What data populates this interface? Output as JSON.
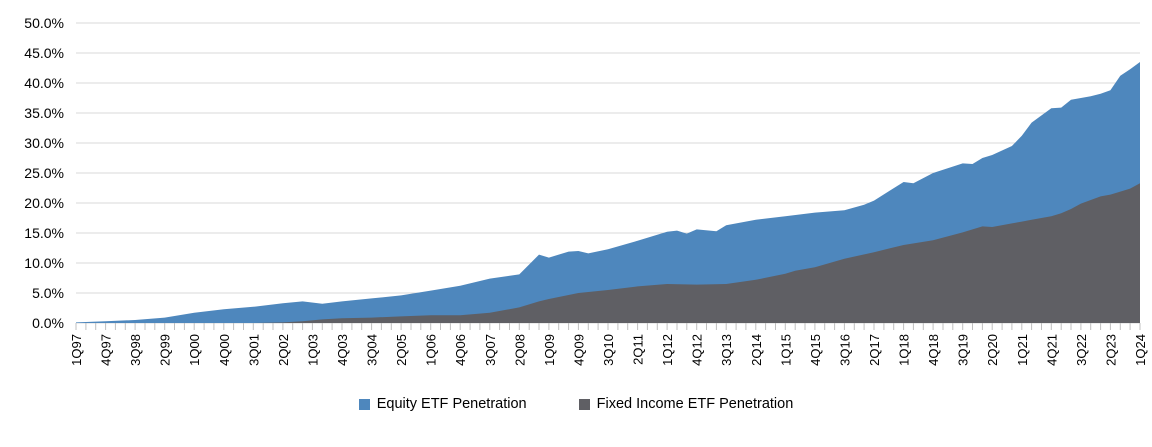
{
  "chart_data": {
    "type": "area",
    "title": "",
    "xlabel": "",
    "ylabel": "",
    "ylim": [
      0,
      50
    ],
    "grid": true,
    "legend_position": "bottom",
    "overlapping_areas": true,
    "colors": {
      "equity_blue": "#4E87BD",
      "fixed_income_gray": "#5F5F64",
      "gridline": "#D9D9D9",
      "tick": "#C0C0C0",
      "text": "#000000",
      "background": "#FFFFFF"
    },
    "y_axis": {
      "ticks": [
        [
          "0.0%",
          0
        ],
        [
          "5.0%",
          5
        ],
        [
          "10.0%",
          10
        ],
        [
          "15.0%",
          15
        ],
        [
          "20.0%",
          20
        ],
        [
          "25.0%",
          25
        ],
        [
          "30.0%",
          30
        ],
        [
          "35.0%",
          35
        ],
        [
          "40.0%",
          40
        ],
        [
          "45.0%",
          45
        ],
        [
          "50.0%",
          50
        ]
      ]
    },
    "x_axis": {
      "quarter_count": 109,
      "label_every_n_quarters": 3,
      "labels": [
        "1Q97",
        "4Q97",
        "3Q98",
        "2Q99",
        "1Q00",
        "4Q00",
        "3Q01",
        "2Q02",
        "1Q03",
        "4Q03",
        "3Q04",
        "2Q05",
        "1Q06",
        "4Q06",
        "3Q07",
        "2Q08",
        "1Q09",
        "4Q09",
        "3Q10",
        "2Q11",
        "1Q12",
        "4Q12",
        "3Q13",
        "2Q14",
        "1Q15",
        "4Q15",
        "3Q16",
        "2Q17",
        "1Q18",
        "4Q18",
        "3Q19",
        "2Q20",
        "1Q21",
        "4Q21",
        "3Q22",
        "2Q23",
        "1Q24"
      ]
    },
    "points_format": [
      "quarter",
      "quarter_index_from_1Q97",
      "value_percent"
    ],
    "series": [
      {
        "name": "Equity ETF Penetration",
        "color": "#4E87BD",
        "points": [
          [
            "1Q97",
            0,
            0.1
          ],
          [
            "4Q97",
            3,
            0.3
          ],
          [
            "3Q98",
            6,
            0.5
          ],
          [
            "2Q99",
            9,
            0.9
          ],
          [
            "1Q00",
            12,
            1.7
          ],
          [
            "4Q00",
            15,
            2.3
          ],
          [
            "3Q01",
            18,
            2.7
          ],
          [
            "2Q02",
            21,
            3.3
          ],
          [
            "4Q02",
            23,
            3.6
          ],
          [
            "2Q03",
            25,
            3.2
          ],
          [
            "4Q03",
            27,
            3.6
          ],
          [
            "3Q04",
            30,
            4.1
          ],
          [
            "2Q05",
            33,
            4.6
          ],
          [
            "1Q06",
            36,
            5.4
          ],
          [
            "4Q06",
            39,
            6.2
          ],
          [
            "3Q07",
            42,
            7.4
          ],
          [
            "2Q08",
            45,
            8.1
          ],
          [
            "4Q08",
            47,
            11.4
          ],
          [
            "1Q09",
            48,
            10.9
          ],
          [
            "3Q09",
            50,
            11.9
          ],
          [
            "4Q09",
            51,
            12.0
          ],
          [
            "1Q10",
            52,
            11.6
          ],
          [
            "3Q10",
            54,
            12.3
          ],
          [
            "2Q11",
            57,
            13.7
          ],
          [
            "1Q12",
            60,
            15.2
          ],
          [
            "2Q12",
            61,
            15.4
          ],
          [
            "3Q12",
            62,
            14.9
          ],
          [
            "4Q12",
            63,
            15.6
          ],
          [
            "2Q13",
            65,
            15.3
          ],
          [
            "3Q13",
            66,
            16.3
          ],
          [
            "2Q14",
            69,
            17.2
          ],
          [
            "1Q15",
            72,
            17.8
          ],
          [
            "4Q15",
            75,
            18.4
          ],
          [
            "3Q16",
            78,
            18.8
          ],
          [
            "1Q17",
            80,
            19.7
          ],
          [
            "2Q17",
            81,
            20.4
          ],
          [
            "1Q18",
            84,
            23.5
          ],
          [
            "2Q18",
            85,
            23.3
          ],
          [
            "4Q18",
            87,
            25.0
          ],
          [
            "3Q19",
            90,
            26.6
          ],
          [
            "4Q19",
            91,
            26.5
          ],
          [
            "1Q20",
            92,
            27.5
          ],
          [
            "2Q20",
            93,
            28.0
          ],
          [
            "4Q20",
            95,
            29.5
          ],
          [
            "1Q21",
            96,
            31.2
          ],
          [
            "2Q21",
            97,
            33.4
          ],
          [
            "4Q21",
            99,
            35.8
          ],
          [
            "1Q22",
            100,
            35.9
          ],
          [
            "2Q22",
            101,
            37.2
          ],
          [
            "3Q22",
            102,
            37.5
          ],
          [
            "4Q22",
            103,
            37.8
          ],
          [
            "1Q23",
            104,
            38.2
          ],
          [
            "2Q23",
            105,
            38.8
          ],
          [
            "3Q23",
            106,
            41.2
          ],
          [
            "4Q23",
            107,
            42.3
          ],
          [
            "1Q24",
            108,
            43.5
          ]
        ]
      },
      {
        "name": "Fixed Income ETF Penetration",
        "color": "#5F5F64",
        "points": [
          [
            "1Q97",
            0,
            0.0
          ],
          [
            "3Q01",
            18,
            0.0
          ],
          [
            "2Q02",
            21,
            0.1
          ],
          [
            "4Q02",
            23,
            0.3
          ],
          [
            "2Q03",
            25,
            0.6
          ],
          [
            "4Q03",
            27,
            0.8
          ],
          [
            "3Q04",
            30,
            0.9
          ],
          [
            "2Q05",
            33,
            1.1
          ],
          [
            "1Q06",
            36,
            1.3
          ],
          [
            "4Q06",
            39,
            1.3
          ],
          [
            "3Q07",
            42,
            1.7
          ],
          [
            "2Q08",
            45,
            2.6
          ],
          [
            "4Q08",
            47,
            3.6
          ],
          [
            "1Q09",
            48,
            4.0
          ],
          [
            "4Q09",
            51,
            5.0
          ],
          [
            "3Q10",
            54,
            5.5
          ],
          [
            "2Q11",
            57,
            6.1
          ],
          [
            "1Q12",
            60,
            6.5
          ],
          [
            "4Q12",
            63,
            6.4
          ],
          [
            "3Q13",
            66,
            6.5
          ],
          [
            "2Q14",
            69,
            7.2
          ],
          [
            "1Q15",
            72,
            8.2
          ],
          [
            "2Q15",
            73,
            8.7
          ],
          [
            "4Q15",
            75,
            9.3
          ],
          [
            "3Q16",
            78,
            10.7
          ],
          [
            "2Q17",
            81,
            11.8
          ],
          [
            "1Q18",
            84,
            13.0
          ],
          [
            "4Q18",
            87,
            13.8
          ],
          [
            "3Q19",
            90,
            15.1
          ],
          [
            "1Q20",
            92,
            16.1
          ],
          [
            "2Q20",
            93,
            16.0
          ],
          [
            "4Q20",
            95,
            16.6
          ],
          [
            "1Q21",
            96,
            16.9
          ],
          [
            "2Q21",
            97,
            17.2
          ],
          [
            "4Q21",
            99,
            17.8
          ],
          [
            "1Q22",
            100,
            18.3
          ],
          [
            "2Q22",
            101,
            19.0
          ],
          [
            "3Q22",
            102,
            19.9
          ],
          [
            "1Q23",
            104,
            21.1
          ],
          [
            "2Q23",
            105,
            21.4
          ],
          [
            "3Q23",
            106,
            21.9
          ],
          [
            "4Q23",
            107,
            22.4
          ],
          [
            "1Q24",
            108,
            23.3
          ]
        ]
      }
    ]
  }
}
